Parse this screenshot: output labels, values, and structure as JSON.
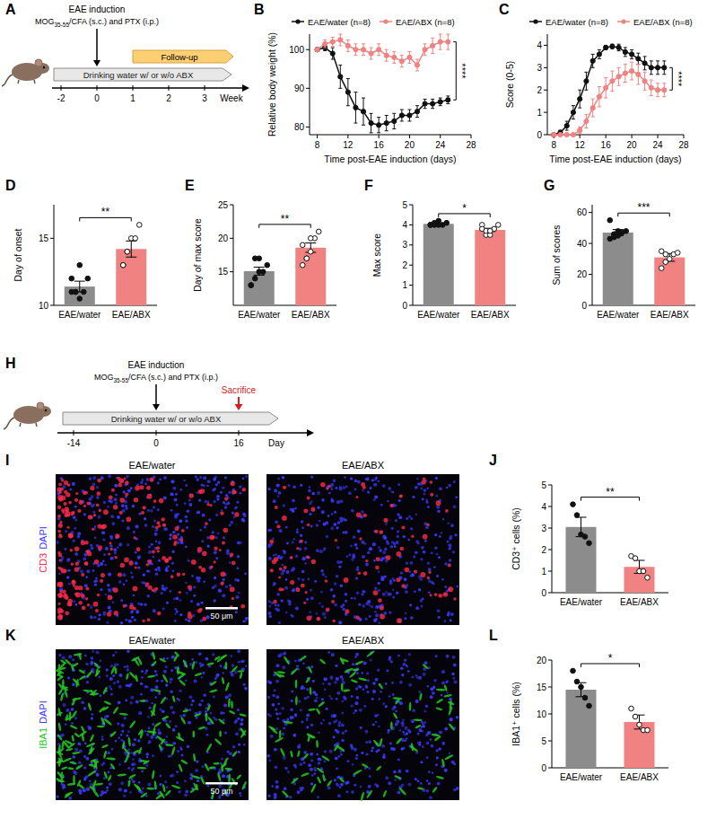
{
  "panel_labels": [
    "A",
    "B",
    "C",
    "D",
    "E",
    "F",
    "G",
    "H",
    "I",
    "J",
    "K",
    "L"
  ],
  "schematics": [
    {
      "induction": "EAE induction",
      "protocol": [
        "MOG",
        "35-55",
        "/CFA (s.c.) and PTX (i.p.)"
      ],
      "induction_at": 0,
      "follow_up": "Follow-up",
      "follow_up_from": 1,
      "treatment": "Drinking water w/ or w/o ABX",
      "ticks": [
        -2,
        0,
        1,
        2,
        3
      ],
      "unit": "Week"
    },
    {
      "induction": "EAE induction",
      "protocol": [
        "MOG",
        "35-55",
        "/CFA (s.c.) and PTX (i.p.)"
      ],
      "induction_at": 0,
      "sacrifice": "Sacrifice",
      "sacrifice_at": 16,
      "treatment": "Drinking water w/ or w/o ABX",
      "ticks": [
        -14,
        0,
        16
      ],
      "unit": "Day"
    }
  ],
  "chart_data": [
    {
      "type": "line",
      "x_label": "Time post-EAE induction (days)",
      "y_label": "Relative body weight (%)",
      "x": [
        8,
        9,
        10,
        11,
        12,
        13,
        14,
        15,
        16,
        17,
        18,
        19,
        20,
        21,
        22,
        23,
        24,
        25
      ],
      "xlim": [
        7,
        28
      ],
      "xticks": [
        8,
        12,
        16,
        20,
        24,
        28
      ],
      "ylim": [
        78,
        104
      ],
      "yticks": [
        80,
        90,
        100
      ],
      "legend": "top",
      "annotations": [
        "****"
      ],
      "series": [
        {
          "name": "EAE/water (n=8)",
          "color": "#111111",
          "marker": "circle",
          "values": [
            100,
            100.5,
            99,
            93,
            89,
            85,
            84,
            81,
            80.5,
            81,
            81.5,
            83,
            83,
            84,
            86,
            86,
            86.5,
            87
          ],
          "errors": [
            0.5,
            0.8,
            1.5,
            3,
            3.5,
            4,
            3.5,
            2.5,
            2,
            2,
            2,
            1.5,
            1.5,
            1.5,
            1.2,
            1.2,
            1,
            1
          ]
        },
        {
          "name": "EAE/ABX (n=8)",
          "color": "#f08282",
          "marker": "circle",
          "values": [
            100,
            101.5,
            102,
            102.5,
            101,
            100,
            100,
            99,
            100,
            98.5,
            98,
            97,
            98,
            96,
            100,
            101,
            102,
            102
          ],
          "errors": [
            0.5,
            1,
            1.2,
            1.5,
            1.5,
            1.5,
            1.5,
            1.5,
            1.5,
            1.5,
            1.5,
            1.5,
            1.5,
            1.5,
            1.5,
            2,
            2,
            2
          ]
        }
      ]
    },
    {
      "type": "line",
      "x_label": "Time post-EAE induction (days)",
      "y_label": "Score (0-5)",
      "x": [
        8,
        9,
        10,
        11,
        12,
        13,
        14,
        15,
        16,
        17,
        18,
        19,
        20,
        21,
        22,
        23,
        24,
        25
      ],
      "xlim": [
        7,
        28
      ],
      "xticks": [
        8,
        12,
        16,
        20,
        24,
        28
      ],
      "ylim": [
        0,
        4.5
      ],
      "yticks": [
        0,
        1,
        2,
        3,
        4
      ],
      "legend": "top",
      "annotations": [
        "****"
      ],
      "series": [
        {
          "name": "EAE/water (n=8)",
          "color": "#111111",
          "marker": "circle",
          "values": [
            0,
            0.1,
            0.4,
            1,
            1.6,
            2.4,
            3.3,
            3.6,
            3.9,
            3.95,
            3.9,
            3.7,
            3.6,
            3.4,
            3.2,
            3,
            3,
            3
          ],
          "errors": [
            0,
            0.1,
            0.2,
            0.3,
            0.4,
            0.4,
            0.3,
            0.2,
            0.1,
            0.1,
            0.15,
            0.2,
            0.2,
            0.25,
            0.3,
            0.3,
            0.3,
            0.3
          ]
        },
        {
          "name": "EAE/ABX (n=8)",
          "color": "#f08282",
          "marker": "circle",
          "values": [
            0,
            0,
            0,
            0,
            0.2,
            0.6,
            1.2,
            1.7,
            2.1,
            2.4,
            2.6,
            2.75,
            2.85,
            2.7,
            2.4,
            2.1,
            2,
            2
          ],
          "errors": [
            0,
            0,
            0,
            0,
            0.15,
            0.3,
            0.4,
            0.45,
            0.45,
            0.45,
            0.4,
            0.4,
            0.4,
            0.45,
            0.4,
            0.35,
            0.3,
            0.3
          ]
        }
      ]
    },
    {
      "type": "bar",
      "y_label": "Day of onset",
      "categories": [
        "EAE/water",
        "EAE/ABX"
      ],
      "colors": [
        "#8c8c8c",
        "#f08282"
      ],
      "values": [
        11.4,
        14.2
      ],
      "errors": [
        0.4,
        0.6
      ],
      "points": [
        [
          11,
          11,
          10.5,
          11,
          12,
          12,
          11,
          13
        ],
        [
          13,
          14,
          15,
          15,
          16,
          13,
          14
        ]
      ],
      "ylim": [
        10,
        17.5
      ],
      "yticks": [
        10,
        15
      ],
      "annotations": [
        "**"
      ]
    },
    {
      "type": "bar",
      "y_label": "Day of max score",
      "categories": [
        "EAE/water",
        "EAE/ABX"
      ],
      "colors": [
        "#8c8c8c",
        "#f08282"
      ],
      "values": [
        15.1,
        18.6
      ],
      "errors": [
        0.6,
        0.7
      ],
      "points": [
        [
          13,
          14,
          17,
          15,
          16,
          13,
          17,
          15
        ],
        [
          16,
          17,
          18,
          20,
          21,
          19,
          17,
          20
        ]
      ],
      "ylim": [
        10,
        25
      ],
      "yticks": [
        15,
        20,
        25
      ],
      "annotations": [
        "**"
      ]
    },
    {
      "type": "bar",
      "y_label": "Max score",
      "categories": [
        "EAE/water",
        "EAE/ABX"
      ],
      "colors": [
        "#8c8c8c",
        "#f08282"
      ],
      "values": [
        4.05,
        3.75
      ],
      "errors": [
        0.03,
        0.08
      ],
      "points": [
        [
          4,
          4,
          4,
          4,
          4.1,
          4,
          4.1,
          4.2
        ],
        [
          4,
          3.5,
          3.5,
          3.8,
          4,
          3.8,
          3.7,
          3.7
        ]
      ],
      "ylim": [
        0,
        5
      ],
      "yticks": [
        0,
        1,
        2,
        3,
        4,
        5
      ],
      "annotations": [
        "*"
      ]
    },
    {
      "type": "bar",
      "y_label": "Sum of scores",
      "categories": [
        "EAE/water",
        "EAE/ABX"
      ],
      "colors": [
        "#8c8c8c",
        "#f08282"
      ],
      "values": [
        47,
        31
      ],
      "errors": [
        2,
        2.5
      ],
      "points": [
        [
          43,
          44,
          45,
          47,
          48,
          55,
          46,
          48
        ],
        [
          24,
          28,
          30,
          33,
          34,
          35,
          33
        ]
      ],
      "ylim": [
        0,
        65
      ],
      "yticks": [
        0,
        20,
        40,
        60
      ],
      "annotations": [
        "***"
      ]
    },
    {
      "type": "bar",
      "y_label": "CD3⁺ cells (%)",
      "categories": [
        "EAE/water",
        "EAE/ABX"
      ],
      "colors": [
        "#8c8c8c",
        "#f08282"
      ],
      "values": [
        3.05,
        1.2
      ],
      "errors": [
        0.45,
        0.3
      ],
      "points": [
        [
          4.1,
          3.6,
          2.7,
          2.6,
          2.3
        ],
        [
          1.7,
          1.6,
          1.0,
          1.0,
          0.7
        ]
      ],
      "ylim": [
        0,
        5
      ],
      "yticks": [
        0,
        1,
        2,
        3,
        4,
        5
      ],
      "annotations": [
        "**"
      ]
    },
    {
      "type": "bar",
      "y_label": "IBA1⁺ cells (%)",
      "categories": [
        "EAE/water",
        "EAE/ABX"
      ],
      "colors": [
        "#8c8c8c",
        "#f08282"
      ],
      "values": [
        14.5,
        8.5
      ],
      "errors": [
        1.3,
        1.3
      ],
      "points": [
        [
          18,
          16,
          15,
          13,
          11.5
        ],
        [
          11,
          9.5,
          8,
          7,
          7
        ]
      ],
      "ylim": [
        0,
        20
      ],
      "yticks": [
        0,
        5,
        10,
        15,
        20
      ],
      "annotations": [
        "*"
      ]
    }
  ],
  "micrographs": [
    {
      "columns": [
        "EAE/water",
        "EAE/ABX"
      ],
      "stains": [
        {
          "name": "CD3",
          "color": "#ff2a4a"
        },
        {
          "name": "DAPI",
          "color": "#3a3aff"
        }
      ],
      "scale_bar": "50 μm"
    },
    {
      "columns": [
        "EAE/water",
        "EAE/ABX"
      ],
      "stains": [
        {
          "name": "IBA1",
          "color": "#22c822"
        },
        {
          "name": "DAPI",
          "color": "#3a3aff"
        }
      ],
      "scale_bar": "50 μm"
    }
  ]
}
